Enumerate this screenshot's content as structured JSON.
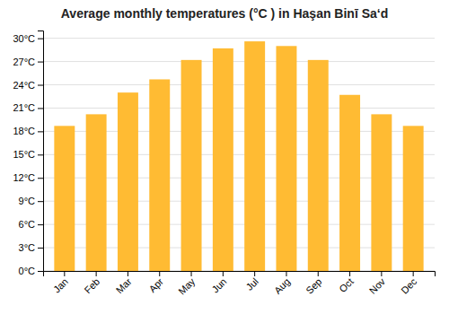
{
  "chart_data": {
    "type": "bar",
    "title": "Average monthly temperatures (°C ) in Haşan Binī Sa‘d",
    "categories": [
      "Jan",
      "Feb",
      "Mar",
      "Apr",
      "May",
      "Jun",
      "Jul",
      "Aug",
      "Sep",
      "Oct",
      "Nov",
      "Dec"
    ],
    "values": [
      18.7,
      20.2,
      23.0,
      24.7,
      27.2,
      28.7,
      29.6,
      29.0,
      27.2,
      22.7,
      20.2,
      18.7
    ],
    "color": "#FFBB33",
    "ylim": [
      0,
      31
    ],
    "yticks": [
      {
        "value": 0,
        "label": "0°C"
      },
      {
        "value": 3,
        "label": "3°C"
      },
      {
        "value": 6,
        "label": "6°C"
      },
      {
        "value": 9,
        "label": "9°C"
      },
      {
        "value": 12,
        "label": "12°C"
      },
      {
        "value": 15,
        "label": "15°C"
      },
      {
        "value": 18,
        "label": "18°C"
      },
      {
        "value": 21,
        "label": "21°C"
      },
      {
        "value": 24,
        "label": "24°C"
      },
      {
        "value": 27,
        "label": "27°C"
      },
      {
        "value": 30,
        "label": "30°C"
      }
    ],
    "grid": true
  }
}
